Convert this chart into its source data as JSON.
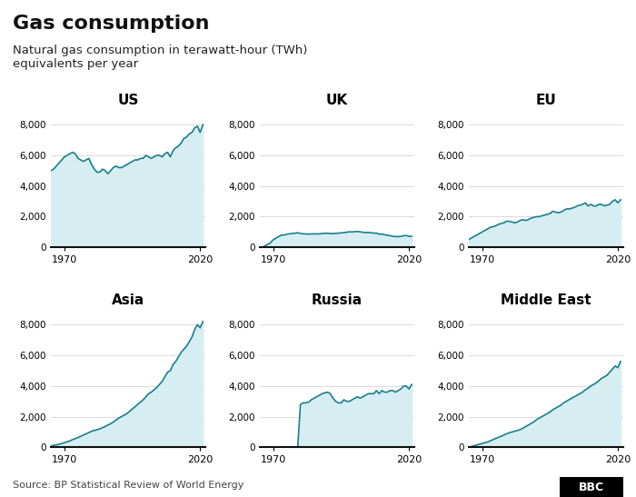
{
  "title": "Gas consumption",
  "subtitle": "Natural gas consumption in terawatt-hour (TWh)\nequivalents per year",
  "source": "Source: BP Statistical Review of World Energy",
  "bbc_label": "BBC",
  "line_color": "#1a7f8e",
  "fill_color": "#d6eef2",
  "background_color": "#ffffff",
  "ylim": [
    0,
    9000
  ],
  "yticks": [
    0,
    2000,
    4000,
    6000,
    8000
  ],
  "xlim": [
    1965,
    2022
  ],
  "xticks": [
    1970,
    2020
  ],
  "regions": [
    "US",
    "UK",
    "EU",
    "Asia",
    "Russia",
    "Middle East"
  ],
  "years": [
    1965,
    1966,
    1967,
    1968,
    1969,
    1970,
    1971,
    1972,
    1973,
    1974,
    1975,
    1976,
    1977,
    1978,
    1979,
    1980,
    1981,
    1982,
    1983,
    1984,
    1985,
    1986,
    1987,
    1988,
    1989,
    1990,
    1991,
    1992,
    1993,
    1994,
    1995,
    1996,
    1997,
    1998,
    1999,
    2000,
    2001,
    2002,
    2003,
    2004,
    2005,
    2006,
    2007,
    2008,
    2009,
    2010,
    2011,
    2012,
    2013,
    2014,
    2015,
    2016,
    2017,
    2018,
    2019,
    2020,
    2021
  ],
  "data": {
    "US": [
      5000,
      5100,
      5300,
      5500,
      5700,
      5900,
      6000,
      6100,
      6200,
      6100,
      5800,
      5700,
      5600,
      5700,
      5800,
      5400,
      5100,
      4900,
      4900,
      5100,
      5000,
      4800,
      5000,
      5200,
      5300,
      5200,
      5200,
      5300,
      5400,
      5500,
      5600,
      5700,
      5700,
      5800,
      5800,
      6000,
      5900,
      5800,
      5900,
      6000,
      6000,
      5900,
      6100,
      6200,
      5900,
      6300,
      6500,
      6600,
      6800,
      7100,
      7200,
      7400,
      7500,
      7800,
      7900,
      7500,
      8000
    ],
    "UK": [
      0,
      0,
      100,
      200,
      300,
      500,
      600,
      700,
      800,
      800,
      850,
      880,
      900,
      920,
      950,
      900,
      880,
      870,
      860,
      870,
      880,
      870,
      880,
      900,
      910,
      920,
      900,
      890,
      910,
      920,
      940,
      960,
      980,
      1010,
      1000,
      1020,
      1030,
      1010,
      980,
      960,
      970,
      950,
      920,
      930,
      850,
      870,
      820,
      790,
      760,
      720,
      700,
      690,
      720,
      750,
      770,
      710,
      720
    ],
    "EU": [
      500,
      600,
      700,
      800,
      900,
      1000,
      1100,
      1200,
      1300,
      1350,
      1400,
      1500,
      1550,
      1600,
      1700,
      1700,
      1650,
      1600,
      1650,
      1750,
      1800,
      1750,
      1800,
      1900,
      1950,
      2000,
      2000,
      2050,
      2100,
      2150,
      2200,
      2350,
      2300,
      2250,
      2300,
      2400,
      2500,
      2500,
      2550,
      2600,
      2700,
      2750,
      2800,
      2900,
      2700,
      2800,
      2700,
      2700,
      2800,
      2800,
      2700,
      2750,
      2800,
      3000,
      3100,
      2900,
      3100
    ],
    "Asia": [
      100,
      130,
      160,
      200,
      250,
      300,
      360,
      420,
      500,
      570,
      640,
      720,
      800,
      880,
      960,
      1050,
      1100,
      1150,
      1200,
      1280,
      1360,
      1450,
      1540,
      1650,
      1780,
      1900,
      2000,
      2100,
      2200,
      2350,
      2500,
      2650,
      2800,
      2950,
      3100,
      3300,
      3500,
      3600,
      3750,
      3900,
      4100,
      4300,
      4600,
      4900,
      5000,
      5400,
      5600,
      5900,
      6200,
      6400,
      6600,
      6900,
      7200,
      7700,
      8000,
      7800,
      8200
    ],
    "Russia": [
      0,
      0,
      0,
      0,
      0,
      0,
      0,
      0,
      0,
      0,
      0,
      0,
      0,
      0,
      0,
      2800,
      2900,
      2900,
      2950,
      3100,
      3200,
      3300,
      3400,
      3500,
      3550,
      3600,
      3500,
      3200,
      3000,
      2900,
      2900,
      3100,
      3000,
      3000,
      3100,
      3200,
      3300,
      3200,
      3300,
      3400,
      3500,
      3500,
      3500,
      3700,
      3500,
      3700,
      3600,
      3600,
      3700,
      3700,
      3600,
      3700,
      3800,
      4000,
      4000,
      3800,
      4100
    ],
    "Middle East": [
      0,
      50,
      100,
      150,
      200,
      250,
      300,
      350,
      420,
      500,
      580,
      650,
      720,
      800,
      880,
      950,
      1000,
      1050,
      1100,
      1150,
      1250,
      1350,
      1450,
      1550,
      1650,
      1800,
      1900,
      2000,
      2100,
      2200,
      2300,
      2450,
      2550,
      2650,
      2750,
      2900,
      3000,
      3100,
      3200,
      3300,
      3400,
      3500,
      3600,
      3750,
      3850,
      4000,
      4100,
      4200,
      4350,
      4500,
      4600,
      4700,
      4900,
      5100,
      5300,
      5200,
      5600
    ]
  }
}
